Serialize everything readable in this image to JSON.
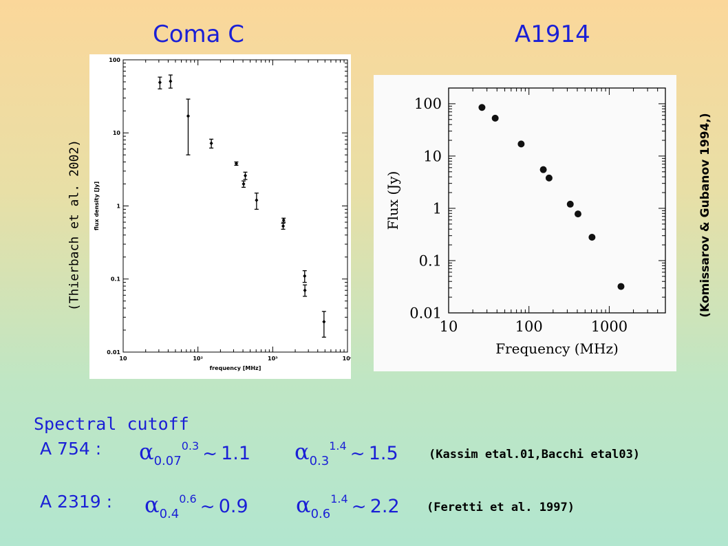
{
  "titles": {
    "left": "Coma C",
    "right": "A1914"
  },
  "citations": {
    "left": "(Thierbach et al. 2002)",
    "right": "(Komissarov & Gubanov 1994,)"
  },
  "section_title": "Spectral cutoff",
  "rows": [
    {
      "cluster": "A 754 :",
      "expr1": {
        "alpha": "α",
        "sub": "0.07",
        "sup": "0.3",
        "tilde": "~",
        "value": "1.1"
      },
      "expr2": {
        "alpha": "α",
        "sub": "0.3",
        "sup": "1.4",
        "tilde": "~",
        "value": "1.5"
      },
      "ref": "(Kassim etal.01,Bacchi etal03)"
    },
    {
      "cluster": "A 2319 :",
      "expr1": {
        "alpha": "α",
        "sub": "0.4",
        "sup": "0.6",
        "tilde": "~",
        "value": "0.9"
      },
      "expr2": {
        "alpha": "α",
        "sub": "0.6",
        "sup": "1.4",
        "tilde": "~",
        "value": "2.2"
      },
      "ref": "(Feretti et al. 1997)"
    }
  ],
  "chart_data": [
    {
      "type": "scatter",
      "xlabel": "frequency [MHz]",
      "ylabel": "flux density [Jy]",
      "xscale": "log",
      "yscale": "log",
      "xlim": [
        10,
        10000
      ],
      "ylim": [
        0.01,
        100
      ],
      "x_ticks": [
        "10",
        "10²",
        "10³",
        "10⁴"
      ],
      "y_ticks": [
        "100",
        "10",
        "1",
        "0.1",
        "0.01"
      ],
      "error_bars": true,
      "points": [
        {
          "x": 31,
          "y": 49,
          "lo": 40,
          "hi": 58
        },
        {
          "x": 43,
          "y": 51,
          "lo": 41,
          "hi": 62
        },
        {
          "x": 74,
          "y": 17,
          "lo": 5,
          "hi": 29
        },
        {
          "x": 151,
          "y": 7.2,
          "lo": 6.2,
          "hi": 8.2
        },
        {
          "x": 326,
          "y": 3.8,
          "lo": 3.6,
          "hi": 4.0
        },
        {
          "x": 408,
          "y": 2.0,
          "lo": 1.8,
          "hi": 2.2
        },
        {
          "x": 430,
          "y": 2.6,
          "lo": 2.3,
          "hi": 2.9
        },
        {
          "x": 608,
          "y": 1.2,
          "lo": 0.9,
          "hi": 1.5
        },
        {
          "x": 1380,
          "y": 0.53,
          "lo": 0.48,
          "hi": 0.58
        },
        {
          "x": 1400,
          "y": 0.64,
          "lo": 0.6,
          "hi": 0.68
        },
        {
          "x": 2675,
          "y": 0.11,
          "lo": 0.09,
          "hi": 0.13
        },
        {
          "x": 2695,
          "y": 0.07,
          "lo": 0.058,
          "hi": 0.083
        },
        {
          "x": 4850,
          "y": 0.026,
          "lo": 0.016,
          "hi": 0.036
        }
      ]
    },
    {
      "type": "scatter",
      "xlabel": "Frequency (MHz)",
      "ylabel": "Flux (Jy)",
      "xscale": "log",
      "yscale": "log",
      "xlim": [
        10,
        5000
      ],
      "ylim": [
        0.01,
        200
      ],
      "x_ticks": [
        "10",
        "100",
        "1000"
      ],
      "y_ticks": [
        "100",
        "10",
        "1",
        "0.1",
        "0.01"
      ],
      "points": [
        {
          "x": 26,
          "y": 85
        },
        {
          "x": 38,
          "y": 53
        },
        {
          "x": 80,
          "y": 17
        },
        {
          "x": 151,
          "y": 5.5
        },
        {
          "x": 178,
          "y": 3.8
        },
        {
          "x": 327,
          "y": 1.2
        },
        {
          "x": 408,
          "y": 0.78
        },
        {
          "x": 610,
          "y": 0.28
        },
        {
          "x": 1400,
          "y": 0.032
        }
      ]
    }
  ]
}
